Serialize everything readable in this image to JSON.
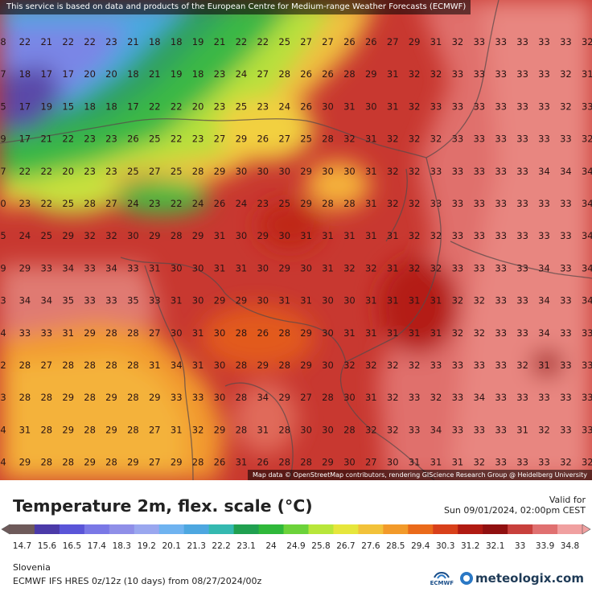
{
  "notice": "This service is based on data and products of the European Centre for Medium-range Weather Forecasts (ECMWF)",
  "attribution": "Map data © OpenStreetMap contributors, rendering GIScience Research Group @ Heidelberg University",
  "title": "Temperature 2m, flex. scale (°C)",
  "valid_label": "Valid for",
  "valid_time": "Sun 09/01/2024, 02:00pm CEST",
  "region": "Slovenia",
  "model": "ECMWF IFS HRES 0z/12z (10 days) from  08/27/2024/00z",
  "ecmwf_label": "ECMWF",
  "brand": "meteologix.com",
  "scale_ticks": [
    "14.7",
    "15.6",
    "16.5",
    "17.4",
    "18.3",
    "19.2",
    "20.1",
    "21.3",
    "22.2",
    "23.1",
    "24",
    "24.9",
    "25.8",
    "26.7",
    "27.6",
    "28.5",
    "29.4",
    "30.3",
    "31.2",
    "32.1",
    "33",
    "33.9",
    "34.8"
  ],
  "scale_colors": [
    "#6e5a5a",
    "#4b3aa8",
    "#5a55d8",
    "#7a78e6",
    "#8f8fe8",
    "#9aa7ef",
    "#6fb3f0",
    "#4da7e0",
    "#34b9b0",
    "#20a050",
    "#2fb83a",
    "#6cd23a",
    "#b8e63a",
    "#e6e63c",
    "#f2c23a",
    "#f29a2a",
    "#ea6a1a",
    "#d8401a",
    "#b01a12",
    "#901010",
    "#c8403c",
    "#e07070",
    "#f0a0a0"
  ],
  "grid_rows": [
    [
      "8",
      "22",
      "21",
      "22",
      "22",
      "23",
      "21",
      "18",
      "18",
      "19",
      "21",
      "22",
      "22",
      "25",
      "27",
      "27",
      "26",
      "26",
      "27",
      "29",
      "31",
      "32",
      "33",
      "33",
      "33",
      "33",
      "33",
      "32"
    ],
    [
      "7",
      "18",
      "17",
      "17",
      "20",
      "20",
      "18",
      "21",
      "19",
      "18",
      "23",
      "24",
      "27",
      "28",
      "26",
      "26",
      "28",
      "29",
      "31",
      "32",
      "32",
      "33",
      "33",
      "33",
      "33",
      "33",
      "32",
      "31"
    ],
    [
      "5",
      "17",
      "19",
      "15",
      "18",
      "18",
      "17",
      "22",
      "22",
      "20",
      "23",
      "25",
      "23",
      "24",
      "26",
      "30",
      "31",
      "30",
      "31",
      "32",
      "33",
      "33",
      "33",
      "33",
      "33",
      "33",
      "32",
      "33"
    ],
    [
      "9",
      "17",
      "21",
      "22",
      "23",
      "23",
      "26",
      "25",
      "22",
      "23",
      "27",
      "29",
      "26",
      "27",
      "25",
      "28",
      "32",
      "31",
      "32",
      "32",
      "32",
      "33",
      "33",
      "33",
      "33",
      "33",
      "33",
      "32"
    ],
    [
      "7",
      "22",
      "22",
      "20",
      "23",
      "23",
      "25",
      "27",
      "25",
      "28",
      "29",
      "30",
      "30",
      "30",
      "29",
      "30",
      "30",
      "31",
      "32",
      "32",
      "33",
      "33",
      "33",
      "33",
      "33",
      "34",
      "34",
      "34"
    ],
    [
      "0",
      "23",
      "22",
      "25",
      "28",
      "27",
      "24",
      "23",
      "22",
      "24",
      "26",
      "24",
      "23",
      "25",
      "29",
      "28",
      "28",
      "31",
      "32",
      "32",
      "33",
      "33",
      "33",
      "33",
      "33",
      "33",
      "33",
      "34"
    ],
    [
      "5",
      "24",
      "25",
      "29",
      "32",
      "32",
      "30",
      "29",
      "28",
      "29",
      "31",
      "30",
      "29",
      "30",
      "31",
      "31",
      "31",
      "31",
      "31",
      "32",
      "32",
      "33",
      "33",
      "33",
      "33",
      "33",
      "33",
      "34"
    ],
    [
      "9",
      "29",
      "33",
      "34",
      "33",
      "34",
      "33",
      "31",
      "30",
      "30",
      "31",
      "31",
      "30",
      "29",
      "30",
      "31",
      "32",
      "32",
      "31",
      "32",
      "32",
      "33",
      "33",
      "33",
      "33",
      "34",
      "33",
      "34"
    ],
    [
      "3",
      "34",
      "34",
      "35",
      "33",
      "33",
      "35",
      "33",
      "31",
      "30",
      "29",
      "29",
      "30",
      "31",
      "31",
      "30",
      "30",
      "31",
      "31",
      "31",
      "31",
      "32",
      "32",
      "33",
      "33",
      "34",
      "33",
      "34"
    ],
    [
      "4",
      "33",
      "33",
      "31",
      "29",
      "28",
      "28",
      "27",
      "30",
      "31",
      "30",
      "28",
      "26",
      "28",
      "29",
      "30",
      "31",
      "31",
      "31",
      "31",
      "31",
      "32",
      "32",
      "33",
      "33",
      "34",
      "33",
      "33"
    ],
    [
      "2",
      "28",
      "27",
      "28",
      "28",
      "28",
      "28",
      "31",
      "34",
      "31",
      "30",
      "28",
      "29",
      "28",
      "29",
      "30",
      "32",
      "32",
      "32",
      "32",
      "33",
      "33",
      "33",
      "33",
      "32",
      "31",
      "33",
      "33"
    ],
    [
      "3",
      "28",
      "28",
      "29",
      "28",
      "29",
      "28",
      "29",
      "33",
      "33",
      "30",
      "28",
      "34",
      "29",
      "27",
      "28",
      "30",
      "31",
      "32",
      "33",
      "32",
      "33",
      "34",
      "33",
      "33",
      "33",
      "33",
      "33"
    ],
    [
      "4",
      "31",
      "28",
      "29",
      "28",
      "29",
      "28",
      "27",
      "31",
      "32",
      "29",
      "28",
      "31",
      "28",
      "30",
      "30",
      "28",
      "32",
      "32",
      "33",
      "34",
      "33",
      "33",
      "33",
      "31",
      "32",
      "33",
      "33"
    ],
    [
      "4",
      "29",
      "28",
      "28",
      "29",
      "28",
      "29",
      "27",
      "29",
      "28",
      "26",
      "31",
      "26",
      "28",
      "28",
      "29",
      "30",
      "27",
      "30",
      "31",
      "31",
      "31",
      "32",
      "33",
      "33",
      "33",
      "32",
      "32"
    ]
  ]
}
